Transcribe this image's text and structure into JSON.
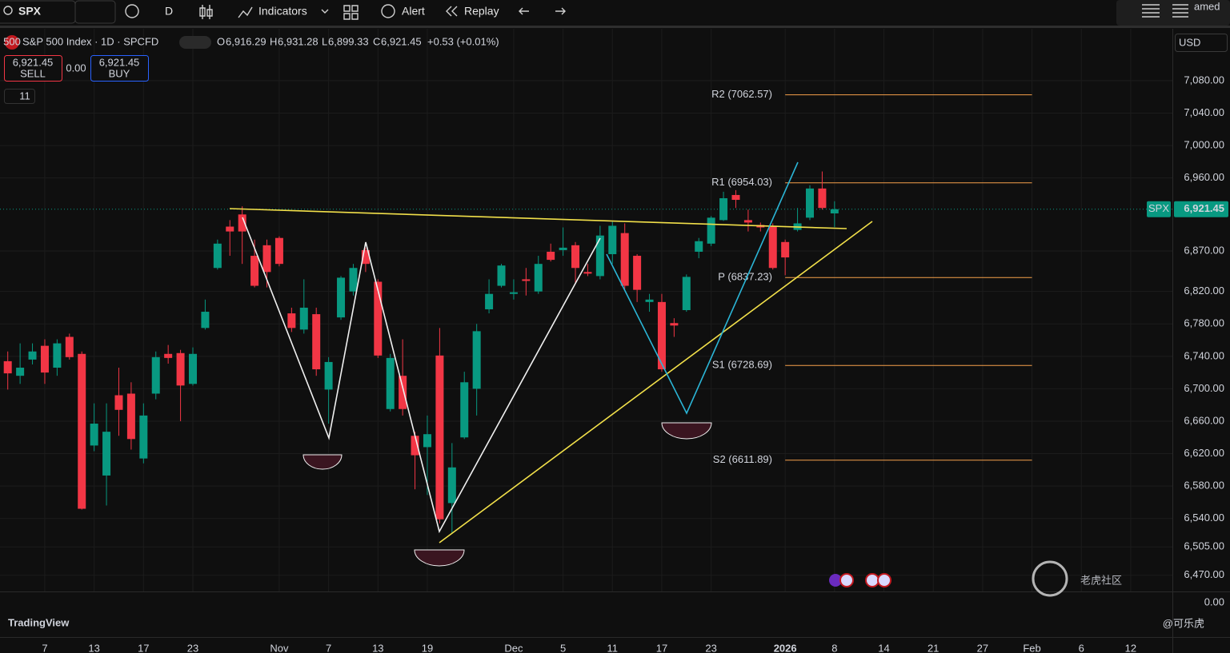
{
  "ui": {
    "symbol": "SPX",
    "interval": "D",
    "indicators": "Indicators",
    "alert": "Alert",
    "replay": "Replay",
    "user": "amed",
    "badge": "500",
    "title": "S&P 500 Index · 1D · SPCFD",
    "ohlc": {
      "o": "O",
      "open": "6,916.29",
      "h": "H",
      "high": "6,931.28",
      "l": "L",
      "low": "6,899.33",
      "c": "C",
      "close": "6,921.45",
      "change": "+0.53 (+0.01%)"
    },
    "sell_price": "6,921.45",
    "sell": "SELL",
    "spread": "0.00",
    "buy_price": "6,921.45",
    "buy": "BUY",
    "indicator_count": "11",
    "currency": "USD",
    "volume_axis": "0.00",
    "logo": "TradingView",
    "watermark": "老虎社区",
    "author": "@可乐虎"
  },
  "chart_data": {
    "type": "candlestick",
    "up_color": "#089981",
    "down_color": "#f23645",
    "grid": true,
    "categories": [
      null,
      null,
      null,
      "7",
      null,
      null,
      null,
      "13",
      null,
      null,
      null,
      "17",
      null,
      null,
      null,
      "23",
      null,
      null,
      null,
      null,
      null,
      null,
      "Nov",
      null,
      null,
      null,
      "7",
      null,
      null,
      null,
      "13",
      null,
      null,
      null,
      "19",
      null,
      null,
      null,
      null,
      null,
      null,
      "Dec",
      null,
      null,
      null,
      "5",
      null,
      null,
      null,
      "11",
      null,
      null,
      null,
      "17",
      null,
      null,
      null,
      "23",
      null,
      null,
      null,
      null,
      null,
      "2026",
      null,
      null,
      null,
      "8",
      null,
      null,
      null,
      "14",
      null,
      null,
      null,
      "21",
      null,
      null,
      null,
      "27",
      null,
      null,
      null,
      "Feb",
      null,
      null,
      null,
      "6",
      null,
      null,
      null,
      "12",
      null,
      null
    ],
    "open": [
      6734,
      6716,
      6736,
      6753,
      6726,
      6764,
      6743,
      6630,
      6593,
      6692,
      6694,
      6614,
      6694,
      6743,
      6744,
      6706,
      6775,
      6849,
      6900,
      6915,
      6864,
      6877,
      6886,
      6793,
      6773,
      6792,
      6699,
      6788,
      6820,
      6871,
      6832,
      6675,
      6716,
      6642,
      6628,
      6741,
      6559,
      6640,
      6700,
      6798,
      6827,
      6817,
      6835,
      6820,
      6869,
      6871,
      6877,
      6844,
      6839,
      6866,
      6892,
      6864,
      6807,
      6807,
      6781,
      6797,
      6869,
      6879,
      6908,
      6939,
      6908,
      6902,
      6901,
      6881,
      6896,
      6911,
      6947,
      6916.29,
      null,
      null,
      null,
      null,
      null,
      null,
      null,
      null,
      null,
      null,
      null,
      null,
      null,
      null,
      null,
      null,
      null,
      null,
      null,
      null,
      null,
      null,
      null,
      null,
      null,
      null
    ],
    "high": [
      6746,
      6756,
      6756,
      6761,
      6761,
      6768,
      6746,
      6682,
      6682,
      6726,
      6708,
      6682,
      6746,
      6754,
      6748,
      6751,
      6810,
      6884,
      6908,
      6925,
      6884,
      6884,
      6888,
      6800,
      6835,
      6800,
      6739,
      6839,
      6854,
      6874,
      6835,
      6743,
      6761,
      6647,
      6667,
      6775,
      6633,
      6721,
      6780,
      6835,
      6854,
      6835,
      6849,
      6864,
      6879,
      6899,
      6881,
      6854,
      6901,
      6906,
      6904,
      6866,
      6817,
      6817,
      6787,
      6841,
      6886,
      6913,
      6943,
      6945,
      6921,
      6905,
      6904,
      6884,
      6923,
      6951,
      6968,
      6931.28,
      null,
      null,
      null,
      null,
      null,
      null,
      null,
      null,
      null,
      null,
      null,
      null,
      null,
      null,
      null,
      null,
      null,
      null,
      null,
      null,
      null,
      null,
      null,
      null,
      null,
      null
    ],
    "low": [
      6699,
      6706,
      6730,
      6706,
      6716,
      6736,
      6551,
      6623,
      6556,
      6642,
      6625,
      6608,
      6687,
      6731,
      6660,
      6704,
      6773,
      6847,
      6864,
      6854,
      6825,
      6825,
      6851,
      6770,
      6768,
      6716,
      6657,
      6785,
      6815,
      6844,
      6738,
      6672,
      6667,
      6576,
      6569,
      6534,
      6521,
      6638,
      6667,
      6793,
      6825,
      6810,
      6815,
      6817,
      6857,
      6864,
      6830,
      6839,
      6835,
      6854,
      6823,
      6807,
      6795,
      6721,
      6764,
      6795,
      6861,
      6876,
      6907,
      6923,
      6894,
      6894,
      6847,
      6840,
      6894,
      6908,
      6921,
      6899.33,
      null,
      null,
      null,
      null,
      null,
      null,
      null,
      null,
      null,
      null,
      null,
      null,
      null,
      null,
      null,
      null,
      null,
      null,
      null,
      null,
      null,
      null,
      null,
      null,
      null,
      null
    ],
    "close": [
      6719,
      6726,
      6746,
      6720,
      6756,
      6739,
      6552,
      6657,
      6647,
      6674,
      6638,
      6667,
      6739,
      6738,
      6704,
      6743,
      6795,
      6879,
      6894,
      6894,
      6827,
      6844,
      6854,
      6775,
      6800,
      6724,
      6733,
      6837,
      6849,
      6854,
      6741,
      6738,
      6675,
      6618,
      6644,
      6539,
      6603,
      6708,
      6771,
      6817,
      6852,
      6819,
      6833,
      6854,
      6859,
      6874,
      6849,
      6842,
      6889,
      6901,
      6827,
      6822,
      6810,
      6724,
      6778,
      6838,
      6882,
      6911,
      6935,
      6933,
      6905,
      6899,
      6849,
      6862,
      6904,
      6947,
      6923,
      6921.45,
      null,
      null,
      null,
      null,
      null,
      null,
      null,
      null,
      null,
      null,
      null,
      null,
      null,
      null,
      null,
      null,
      null,
      null,
      null,
      null,
      null,
      null,
      null,
      null,
      null,
      null
    ],
    "ylim": [
      6450,
      7144
    ],
    "yticks": [
      {
        "value": 7080,
        "label": "7,080.00"
      },
      {
        "value": 7040,
        "label": "7,040.00"
      },
      {
        "value": 7000,
        "label": "7,000.00"
      },
      {
        "value": 6960,
        "label": "6,960.00"
      },
      {
        "value": 6870,
        "label": "6,870.00"
      },
      {
        "value": 6820,
        "label": "6,820.00"
      },
      {
        "value": 6780,
        "label": "6,780.00"
      },
      {
        "value": 6740,
        "label": "6,740.00"
      },
      {
        "value": 6700,
        "label": "6,700.00"
      },
      {
        "value": 6660,
        "label": "6,660.00"
      },
      {
        "value": 6620,
        "label": "6,620.00"
      },
      {
        "value": 6580,
        "label": "6,580.00"
      },
      {
        "value": 6540,
        "label": "6,540.00"
      },
      {
        "value": 6505,
        "label": "6,505.00"
      },
      {
        "value": 6470,
        "label": "6,470.00"
      }
    ],
    "pivot_color": "#f5a04a",
    "pivots": [
      {
        "value": 7062.57,
        "label": "R2 (7062.57)"
      },
      {
        "value": 6954.03,
        "label": "R1 (6954.03)"
      },
      {
        "value": 6837.23,
        "label": "P (6837.23)"
      },
      {
        "value": 6728.69,
        "label": "S1 (6728.69)"
      },
      {
        "value": 6611.89,
        "label": "S2 (6611.89)"
      }
    ],
    "last_price": {
      "symbol": "SPX",
      "value": 6921.45,
      "label": "6,921.45"
    }
  }
}
